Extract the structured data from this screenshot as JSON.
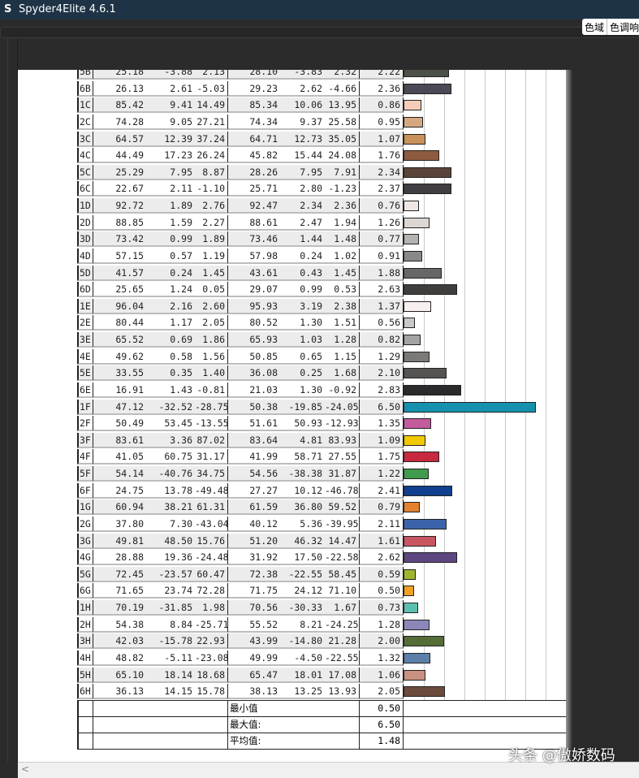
{
  "window": {
    "title": "Spyder4Elite 4.6.1",
    "logo_letter": "S"
  },
  "tabs": [
    {
      "label": "色域"
    },
    {
      "label": "色调响"
    }
  ],
  "table": {
    "rows": [
      {
        "id": "5B",
        "L1": "25.18",
        "a1": "-3.88",
        "b1": "2.13",
        "L2": "28.10",
        "a2": "-3.83",
        "b2": "2.32",
        "dE": "2.22",
        "color": "#4b5149"
      },
      {
        "id": "6B",
        "L1": "26.13",
        "a1": "2.61",
        "b1": "-5.03",
        "L2": "29.23",
        "a2": "2.62",
        "b2": "-4.66",
        "dE": "2.36",
        "color": "#4a4a56"
      },
      {
        "id": "1C",
        "L1": "85.42",
        "a1": "9.41",
        "b1": "14.49",
        "L2": "85.34",
        "a2": "10.06",
        "b2": "13.95",
        "dE": "0.86",
        "color": "#f3cdb9"
      },
      {
        "id": "2C",
        "L1": "74.28",
        "a1": "9.05",
        "b1": "27.21",
        "L2": "74.34",
        "a2": "9.37",
        "b2": "25.58",
        "dE": "0.95",
        "color": "#d6a882"
      },
      {
        "id": "3C",
        "L1": "64.57",
        "a1": "12.39",
        "b1": "37.24",
        "L2": "64.71",
        "a2": "12.73",
        "b2": "35.05",
        "dE": "1.07",
        "color": "#c9925a"
      },
      {
        "id": "4C",
        "L1": "44.49",
        "a1": "17.23",
        "b1": "26.24",
        "L2": "45.82",
        "a2": "15.44",
        "b2": "24.08",
        "dE": "1.76",
        "color": "#8e5b40"
      },
      {
        "id": "5C",
        "L1": "25.29",
        "a1": "7.95",
        "b1": "8.87",
        "L2": "28.26",
        "a2": "7.95",
        "b2": "7.91",
        "dE": "2.34",
        "color": "#5a4439"
      },
      {
        "id": "6C",
        "L1": "22.67",
        "a1": "2.11",
        "b1": "-1.10",
        "L2": "25.71",
        "a2": "2.80",
        "b2": "-1.23",
        "dE": "2.37",
        "color": "#403e42"
      },
      {
        "id": "1D",
        "L1": "92.72",
        "a1": "1.89",
        "b1": "2.76",
        "L2": "92.47",
        "a2": "2.34",
        "b2": "2.36",
        "dE": "0.76",
        "color": "#eee7e3"
      },
      {
        "id": "2D",
        "L1": "88.85",
        "a1": "1.59",
        "b1": "2.27",
        "L2": "88.61",
        "a2": "2.47",
        "b2": "1.94",
        "dE": "1.26",
        "color": "#ddd7d4"
      },
      {
        "id": "3D",
        "L1": "73.42",
        "a1": "0.99",
        "b1": "1.89",
        "L2": "73.46",
        "a2": "1.44",
        "b2": "1.48",
        "dE": "0.77",
        "color": "#b5b2b0"
      },
      {
        "id": "4D",
        "L1": "57.15",
        "a1": "0.57",
        "b1": "1.19",
        "L2": "57.98",
        "a2": "0.24",
        "b2": "1.02",
        "dE": "0.91",
        "color": "#8b8987"
      },
      {
        "id": "5D",
        "L1": "41.57",
        "a1": "0.24",
        "b1": "1.45",
        "L2": "43.61",
        "a2": "0.43",
        "b2": "1.45",
        "dE": "1.88",
        "color": "#686766"
      },
      {
        "id": "6D",
        "L1": "25.65",
        "a1": "1.24",
        "b1": "0.05",
        "L2": "29.07",
        "a2": "0.99",
        "b2": "0.53",
        "dE": "2.63",
        "color": "#3f3e3d"
      },
      {
        "id": "1E",
        "L1": "96.04",
        "a1": "2.16",
        "b1": "2.60",
        "L2": "95.93",
        "a2": "3.19",
        "b2": "2.38",
        "dE": "1.37",
        "color": "#f8f0ef"
      },
      {
        "id": "2E",
        "L1": "80.44",
        "a1": "1.17",
        "b1": "2.05",
        "L2": "80.52",
        "a2": "1.30",
        "b2": "1.51",
        "dE": "0.56",
        "color": "#cac8c7"
      },
      {
        "id": "3E",
        "L1": "65.52",
        "a1": "0.69",
        "b1": "1.86",
        "L2": "65.93",
        "a2": "1.03",
        "b2": "1.28",
        "dE": "0.82",
        "color": "#a4a3a2"
      },
      {
        "id": "4E",
        "L1": "49.62",
        "a1": "0.58",
        "b1": "1.56",
        "L2": "50.85",
        "a2": "0.65",
        "b2": "1.15",
        "dE": "1.29",
        "color": "#7b7a79"
      },
      {
        "id": "5E",
        "L1": "33.55",
        "a1": "0.35",
        "b1": "1.40",
        "L2": "36.08",
        "a2": "0.25",
        "b2": "1.68",
        "dE": "2.10",
        "color": "#555453"
      },
      {
        "id": "6E",
        "L1": "16.91",
        "a1": "1.43",
        "b1": "-0.81",
        "L2": "21.03",
        "a2": "1.30",
        "b2": "-0.92",
        "dE": "2.83",
        "color": "#2b2a2c"
      },
      {
        "id": "1F",
        "L1": "47.12",
        "a1": "-32.52",
        "b1": "-28.75",
        "L2": "50.38",
        "a2": "-19.85",
        "b2": "-24.05",
        "dE": "6.50",
        "color": "#1591ae"
      },
      {
        "id": "2F",
        "L1": "50.49",
        "a1": "53.45",
        "b1": "-13.55",
        "L2": "51.61",
        "a2": "50.93",
        "b2": "-12.93",
        "dE": "1.35",
        "color": "#c35b9d"
      },
      {
        "id": "3F",
        "L1": "83.61",
        "a1": "3.36",
        "b1": "87.02",
        "L2": "83.64",
        "a2": "4.81",
        "b2": "83.93",
        "dE": "1.09",
        "color": "#f0c900"
      },
      {
        "id": "4F",
        "L1": "41.05",
        "a1": "60.75",
        "b1": "31.17",
        "L2": "41.99",
        "a2": "58.71",
        "b2": "27.55",
        "dE": "1.75",
        "color": "#c9293f"
      },
      {
        "id": "5F",
        "L1": "54.14",
        "a1": "-40.76",
        "b1": "34.75",
        "L2": "54.56",
        "a2": "-38.38",
        "b2": "31.87",
        "dE": "1.22",
        "color": "#409b4f"
      },
      {
        "id": "6F",
        "L1": "24.75",
        "a1": "13.78",
        "b1": "-49.48",
        "L2": "27.27",
        "a2": "10.12",
        "b2": "-46.78",
        "dE": "2.41",
        "color": "#10408f"
      },
      {
        "id": "1G",
        "L1": "60.94",
        "a1": "38.21",
        "b1": "61.31",
        "L2": "61.59",
        "a2": "36.80",
        "b2": "59.52",
        "dE": "0.79",
        "color": "#e18131"
      },
      {
        "id": "2G",
        "L1": "37.80",
        "a1": "7.30",
        "b1": "-43.04",
        "L2": "40.12",
        "a2": "5.36",
        "b2": "-39.95",
        "dE": "2.11",
        "color": "#3b63a9"
      },
      {
        "id": "3G",
        "L1": "49.81",
        "a1": "48.50",
        "b1": "15.76",
        "L2": "51.20",
        "a2": "46.32",
        "b2": "14.47",
        "dE": "1.61",
        "color": "#c95561"
      },
      {
        "id": "4G",
        "L1": "28.88",
        "a1": "19.36",
        "b1": "-24.48",
        "L2": "31.92",
        "a2": "17.50",
        "b2": "-22.58",
        "dE": "2.62",
        "color": "#5e4681"
      },
      {
        "id": "5G",
        "L1": "72.45",
        "a1": "-23.57",
        "b1": "60.47",
        "L2": "72.38",
        "a2": "-22.55",
        "b2": "58.45",
        "dE": "0.59",
        "color": "#a0b42f"
      },
      {
        "id": "6G",
        "L1": "71.65",
        "a1": "23.74",
        "b1": "72.28",
        "L2": "71.75",
        "a2": "24.12",
        "b2": "71.10",
        "dE": "0.50",
        "color": "#f1a121"
      },
      {
        "id": "1H",
        "L1": "70.19",
        "a1": "-31.85",
        "b1": "1.98",
        "L2": "70.56",
        "a2": "-30.33",
        "b2": "1.67",
        "dE": "0.73",
        "color": "#5cc0b1"
      },
      {
        "id": "2H",
        "L1": "54.38",
        "a1": "8.84",
        "b1": "-25.71",
        "L2": "55.52",
        "a2": "8.21",
        "b2": "-24.25",
        "dE": "1.28",
        "color": "#8b87b9"
      },
      {
        "id": "3H",
        "L1": "42.03",
        "a1": "-15.78",
        "b1": "22.93",
        "L2": "43.99",
        "a2": "-14.80",
        "b2": "21.28",
        "dE": "2.00",
        "color": "#566c37"
      },
      {
        "id": "4H",
        "L1": "48.82",
        "a1": "-5.11",
        "b1": "-23.08",
        "L2": "49.99",
        "a2": "-4.50",
        "b2": "-22.55",
        "dE": "1.32",
        "color": "#5b7fa9"
      },
      {
        "id": "5H",
        "L1": "65.10",
        "a1": "18.14",
        "b1": "18.68",
        "L2": "65.47",
        "a2": "18.01",
        "b2": "17.08",
        "dE": "1.06",
        "color": "#ca9181"
      },
      {
        "id": "6H",
        "L1": "36.13",
        "a1": "14.15",
        "b1": "15.78",
        "L2": "38.13",
        "a2": "13.25",
        "b2": "13.93",
        "dE": "2.05",
        "color": "#6b4b3b"
      }
    ],
    "bar_scale_max": 8,
    "summary": [
      {
        "label": "最小值",
        "value": "0.50"
      },
      {
        "label": "最大值:",
        "value": "6.50"
      },
      {
        "label": "平均值:",
        "value": "1.48"
      }
    ]
  },
  "scrollbar": {
    "left_arrow": "<"
  },
  "watermark": "头条 @傲娇数码"
}
